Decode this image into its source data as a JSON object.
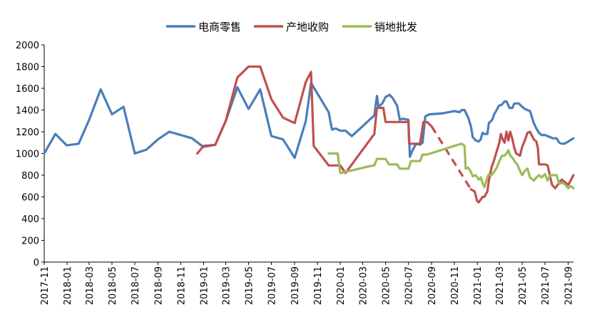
{
  "chart_data": {
    "type": "line",
    "title": "",
    "xlabel": "",
    "ylabel": "",
    "ylim": [
      0,
      2000
    ],
    "yticks": [
      0,
      200,
      400,
      600,
      800,
      1000,
      1200,
      1400,
      1600,
      1800,
      2000
    ],
    "xlim": [
      "2017-11-01",
      "2021-09-15"
    ],
    "xticks": [
      "2017-11",
      "2018-01",
      "2018-03",
      "2018-05",
      "2018-07",
      "2018-09",
      "2018-11",
      "2019-01",
      "2019-03",
      "2019-05",
      "2019-07",
      "2019-09",
      "2019-11",
      "2020-01",
      "2020-03",
      "2020-05",
      "2020-07",
      "2020-09",
      "2020-11",
      "2021-01",
      "2021-03",
      "2021-05",
      "2021-07",
      "2021-09"
    ],
    "grid": false,
    "legend_position": "top-center",
    "series": [
      {
        "name": "电商零售",
        "color": "#4a7ebb",
        "segments": [
          [
            [
              "2017-11-01",
              1000
            ],
            [
              "2017-12-01",
              1180
            ],
            [
              "2017-12-31",
              1075
            ],
            [
              "2018-02-01",
              1090
            ],
            [
              "2018-03-01",
              1310
            ],
            [
              "2018-04-01",
              1590
            ],
            [
              "2018-05-01",
              1360
            ],
            [
              "2018-06-01",
              1430
            ],
            [
              "2018-07-01",
              1000
            ],
            [
              "2018-08-01",
              1035
            ],
            [
              "2018-09-01",
              1130
            ],
            [
              "2018-10-01",
              1200
            ],
            [
              "2018-11-01",
              1170
            ],
            [
              "2018-12-01",
              1140
            ],
            [
              "2018-12-31",
              1060
            ],
            [
              "2019-02-01",
              1080
            ],
            [
              "2019-03-01",
              1300
            ],
            [
              "2019-04-01",
              1610
            ],
            [
              "2019-05-01",
              1410
            ],
            [
              "2019-06-01",
              1590
            ],
            [
              "2019-07-01",
              1160
            ],
            [
              "2019-08-01",
              1130
            ],
            [
              "2019-09-01",
              960
            ],
            [
              "2019-10-01",
              1300
            ],
            [
              "2019-10-15",
              1650
            ],
            [
              "2019-12-01",
              1380
            ],
            [
              "2019-12-10",
              1220
            ],
            [
              "2019-12-20",
              1230
            ],
            [
              "2020-01-01",
              1210
            ],
            [
              "2020-01-15",
              1210
            ],
            [
              "2020-02-01",
              1160
            ],
            [
              "2020-04-01",
              1350
            ],
            [
              "2020-04-08",
              1530
            ],
            [
              "2020-04-12",
              1430
            ],
            [
              "2020-04-22",
              1460
            ],
            [
              "2020-05-01",
              1520
            ],
            [
              "2020-05-12",
              1540
            ],
            [
              "2020-05-20",
              1510
            ],
            [
              "2020-06-01",
              1440
            ],
            [
              "2020-06-08",
              1310
            ],
            [
              "2020-06-15",
              1320
            ],
            [
              "2020-07-01",
              1310
            ],
            [
              "2020-07-05",
              970
            ],
            [
              "2020-07-12",
              1030
            ],
            [
              "2020-07-20",
              1080
            ],
            [
              "2020-07-28",
              1090
            ],
            [
              "2020-08-01",
              1080
            ],
            [
              "2020-08-08",
              1100
            ],
            [
              "2020-08-15",
              1340
            ],
            [
              "2020-08-25",
              1360
            ],
            [
              "2020-10-01",
              1370
            ],
            [
              "2020-11-01",
              1390
            ],
            [
              "2020-11-15",
              1380
            ],
            [
              "2020-11-20",
              1400
            ],
            [
              "2020-11-28",
              1400
            ],
            [
              "2020-12-08",
              1330
            ],
            [
              "2020-12-15",
              1250
            ],
            [
              "2020-12-20",
              1150
            ],
            [
              "2020-12-28",
              1120
            ],
            [
              "2021-01-05",
              1110
            ],
            [
              "2021-01-10",
              1130
            ],
            [
              "2021-01-15",
              1190
            ],
            [
              "2021-01-20",
              1180
            ],
            [
              "2021-01-28",
              1180
            ],
            [
              "2021-02-01",
              1280
            ],
            [
              "2021-02-10",
              1310
            ],
            [
              "2021-02-15",
              1360
            ],
            [
              "2021-02-20",
              1390
            ],
            [
              "2021-02-28",
              1440
            ],
            [
              "2021-03-08",
              1450
            ],
            [
              "2021-03-15",
              1480
            ],
            [
              "2021-03-20",
              1480
            ],
            [
              "2021-03-28",
              1420
            ],
            [
              "2021-04-05",
              1420
            ],
            [
              "2021-04-10",
              1460
            ],
            [
              "2021-04-15",
              1460
            ],
            [
              "2021-04-22",
              1460
            ],
            [
              "2021-05-01",
              1430
            ],
            [
              "2021-05-08",
              1410
            ],
            [
              "2021-05-15",
              1400
            ],
            [
              "2021-05-22",
              1390
            ],
            [
              "2021-06-01",
              1280
            ],
            [
              "2021-06-08",
              1230
            ],
            [
              "2021-06-15",
              1190
            ],
            [
              "2021-06-22",
              1170
            ],
            [
              "2021-07-01",
              1170
            ],
            [
              "2021-07-08",
              1160
            ],
            [
              "2021-07-15",
              1150
            ],
            [
              "2021-07-22",
              1140
            ],
            [
              "2021-08-01",
              1140
            ],
            [
              "2021-08-08",
              1100
            ],
            [
              "2021-08-15",
              1090
            ],
            [
              "2021-08-22",
              1090
            ],
            [
              "2021-09-01",
              1110
            ],
            [
              "2021-09-15",
              1140
            ]
          ]
        ]
      },
      {
        "name": "产地收购",
        "color": "#c0504d",
        "segments": [
          [
            [
              "2018-12-15",
              1000
            ],
            [
              "2019-01-01",
              1070
            ],
            [
              "2019-02-01",
              1080
            ],
            [
              "2019-03-01",
              1300
            ],
            [
              "2019-04-01",
              1700
            ],
            [
              "2019-05-01",
              1800
            ],
            [
              "2019-06-01",
              1800
            ],
            [
              "2019-07-01",
              1500
            ],
            [
              "2019-08-01",
              1330
            ],
            [
              "2019-09-01",
              1280
            ],
            [
              "2019-10-01",
              1660
            ],
            [
              "2019-10-15",
              1750
            ],
            [
              "2019-10-22",
              1070
            ],
            [
              "2019-12-01",
              890
            ],
            [
              "2020-01-01",
              890
            ],
            [
              "2020-01-15",
              820
            ],
            [
              "2020-04-01",
              1180
            ],
            [
              "2020-04-08",
              1420
            ],
            [
              "2020-04-25",
              1420
            ],
            [
              "2020-05-01",
              1290
            ],
            [
              "2020-06-01",
              1290
            ],
            [
              "2020-06-20",
              1290
            ],
            [
              "2020-07-01",
              1290
            ],
            [
              "2020-07-03",
              1090
            ],
            [
              "2020-07-20",
              1090
            ],
            [
              "2020-08-01",
              1090
            ],
            [
              "2020-08-10",
              1290
            ],
            [
              "2020-08-20",
              1290
            ],
            [
              "2020-09-01",
              1250
            ]
          ],
          [
            [
              "2020-12-15",
              670
            ],
            [
              "2020-12-25",
              650
            ],
            [
              "2021-01-01",
              560
            ],
            [
              "2021-01-05",
              550
            ],
            [
              "2021-01-15",
              600
            ],
            [
              "2021-01-20",
              600
            ],
            [
              "2021-01-28",
              650
            ],
            [
              "2021-02-01",
              750
            ],
            [
              "2021-02-08",
              870
            ],
            [
              "2021-02-15",
              940
            ],
            [
              "2021-02-22",
              1020
            ],
            [
              "2021-03-01",
              1100
            ],
            [
              "2021-03-05",
              1180
            ],
            [
              "2021-03-10",
              1130
            ],
            [
              "2021-03-15",
              1100
            ],
            [
              "2021-03-20",
              1200
            ],
            [
              "2021-03-25",
              1120
            ],
            [
              "2021-03-30",
              1200
            ],
            [
              "2021-04-05",
              1130
            ],
            [
              "2021-04-10",
              1050
            ],
            [
              "2021-04-15",
              1000
            ],
            [
              "2021-04-20",
              990
            ],
            [
              "2021-04-25",
              980
            ],
            [
              "2021-05-01",
              1060
            ],
            [
              "2021-05-08",
              1120
            ],
            [
              "2021-05-15",
              1190
            ],
            [
              "2021-05-22",
              1200
            ],
            [
              "2021-06-01",
              1130
            ],
            [
              "2021-06-08",
              1110
            ],
            [
              "2021-06-12",
              1050
            ],
            [
              "2021-06-15",
              900
            ],
            [
              "2021-06-22",
              900
            ],
            [
              "2021-07-01",
              900
            ],
            [
              "2021-07-08",
              890
            ],
            [
              "2021-07-15",
              780
            ],
            [
              "2021-07-20",
              710
            ],
            [
              "2021-07-28",
              680
            ],
            [
              "2021-08-08",
              730
            ],
            [
              "2021-08-15",
              760
            ],
            [
              "2021-08-22",
              740
            ],
            [
              "2021-09-01",
              710
            ],
            [
              "2021-09-15",
              800
            ]
          ]
        ],
        "dashed_segments": [
          [
            [
              "2020-09-01",
              1250
            ],
            [
              "2020-12-15",
              670
            ]
          ]
        ]
      },
      {
        "name": "销地批发",
        "color": "#9bbb59",
        "segments": [
          [
            [
              "2019-12-01",
              1000
            ],
            [
              "2019-12-25",
              1000
            ],
            [
              "2020-01-01",
              820
            ],
            [
              "2020-01-15",
              830
            ],
            [
              "2020-03-15",
              880
            ],
            [
              "2020-04-01",
              890
            ],
            [
              "2020-04-08",
              950
            ],
            [
              "2020-05-01",
              950
            ],
            [
              "2020-05-10",
              900
            ],
            [
              "2020-06-01",
              900
            ],
            [
              "2020-06-08",
              860
            ],
            [
              "2020-07-01",
              860
            ],
            [
              "2020-07-08",
              930
            ],
            [
              "2020-08-01",
              930
            ],
            [
              "2020-08-08",
              990
            ],
            [
              "2020-08-20",
              990
            ],
            [
              "2020-11-01",
              1070
            ],
            [
              "2020-11-20",
              1090
            ],
            [
              "2020-11-28",
              1070
            ],
            [
              "2020-12-01",
              860
            ],
            [
              "2020-12-08",
              870
            ],
            [
              "2020-12-15",
              830
            ],
            [
              "2020-12-20",
              790
            ],
            [
              "2020-12-28",
              800
            ],
            [
              "2021-01-05",
              760
            ],
            [
              "2021-01-10",
              780
            ],
            [
              "2021-01-15",
              730
            ],
            [
              "2021-01-20",
              690
            ],
            [
              "2021-01-28",
              780
            ],
            [
              "2021-02-01",
              810
            ],
            [
              "2021-02-08",
              800
            ],
            [
              "2021-02-15",
              830
            ],
            [
              "2021-02-22",
              870
            ],
            [
              "2021-03-01",
              930
            ],
            [
              "2021-03-08",
              980
            ],
            [
              "2021-03-15",
              980
            ],
            [
              "2021-03-20",
              1000
            ],
            [
              "2021-03-25",
              1030
            ],
            [
              "2021-03-30",
              980
            ],
            [
              "2021-04-05",
              960
            ],
            [
              "2021-04-12",
              920
            ],
            [
              "2021-04-18",
              900
            ],
            [
              "2021-04-25",
              840
            ],
            [
              "2021-05-01",
              800
            ],
            [
              "2021-05-08",
              840
            ],
            [
              "2021-05-15",
              860
            ],
            [
              "2021-05-22",
              780
            ],
            [
              "2021-06-01",
              750
            ],
            [
              "2021-06-08",
              780
            ],
            [
              "2021-06-15",
              800
            ],
            [
              "2021-06-22",
              780
            ],
            [
              "2021-07-01",
              810
            ],
            [
              "2021-07-08",
              750
            ],
            [
              "2021-07-15",
              800
            ],
            [
              "2021-07-22",
              800
            ],
            [
              "2021-08-01",
              800
            ],
            [
              "2021-08-08",
              720
            ],
            [
              "2021-08-15",
              730
            ],
            [
              "2021-08-22",
              720
            ],
            [
              "2021-09-01",
              680
            ],
            [
              "2021-09-08",
              700
            ],
            [
              "2021-09-15",
              680
            ]
          ]
        ]
      }
    ]
  }
}
